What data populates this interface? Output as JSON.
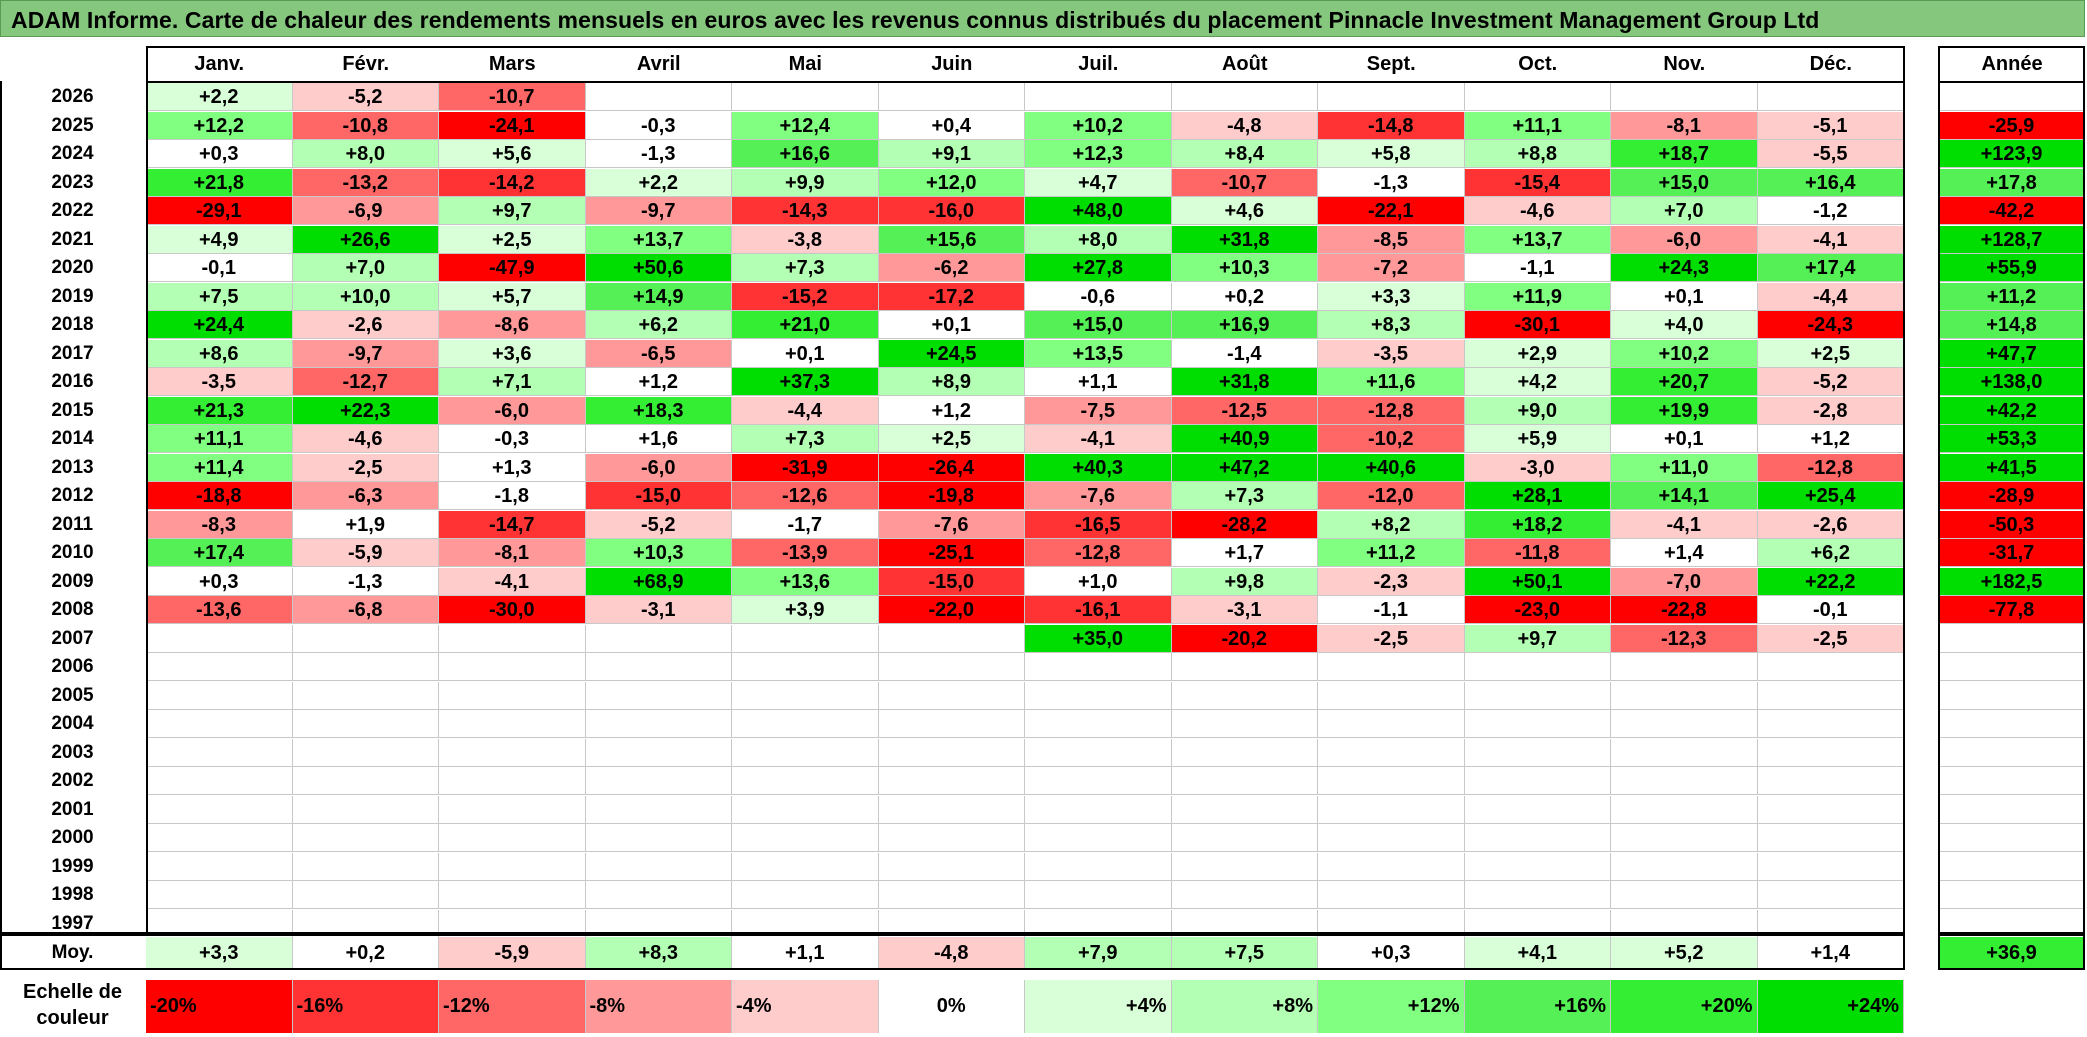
{
  "title": "ADAM Informe. Carte de chaleur des rendements mensuels en euros avec les revenus connus distribués du placement Pinnacle Investment Management Group Ltd",
  "chart_data": {
    "type": "heatmap",
    "title": "ADAM Informe. Carte de chaleur des rendements mensuels en euros avec les revenus connus distribués du placement Pinnacle Investment Management Group Ltd",
    "columns": [
      "Janv.",
      "Févr.",
      "Mars",
      "Avril",
      "Mai",
      "Juin",
      "Juil.",
      "Août",
      "Sept.",
      "Oct.",
      "Nov.",
      "Déc."
    ],
    "year_column_label": "Année",
    "rows": [
      {
        "year": "2026",
        "values": [
          "+2,2",
          "-5,2",
          "-10,7",
          "",
          "",
          "",
          "",
          "",
          "",
          "",
          "",
          ""
        ],
        "annual": ""
      },
      {
        "year": "2025",
        "values": [
          "+12,2",
          "-10,8",
          "-24,1",
          "-0,3",
          "+12,4",
          "+0,4",
          "+10,2",
          "-4,8",
          "-14,8",
          "+11,1",
          "-8,1",
          "-5,1"
        ],
        "annual": "-25,9"
      },
      {
        "year": "2024",
        "values": [
          "+0,3",
          "+8,0",
          "+5,6",
          "-1,3",
          "+16,6",
          "+9,1",
          "+12,3",
          "+8,4",
          "+5,8",
          "+8,8",
          "+18,7",
          "-5,5"
        ],
        "annual": "+123,9"
      },
      {
        "year": "2023",
        "values": [
          "+21,8",
          "-13,2",
          "-14,2",
          "+2,2",
          "+9,9",
          "+12,0",
          "+4,7",
          "-10,7",
          "-1,3",
          "-15,4",
          "+15,0",
          "+16,4"
        ],
        "annual": "+17,8"
      },
      {
        "year": "2022",
        "values": [
          "-29,1",
          "-6,9",
          "+9,7",
          "-9,7",
          "-14,3",
          "-16,0",
          "+48,0",
          "+4,6",
          "-22,1",
          "-4,6",
          "+7,0",
          "-1,2"
        ],
        "annual": "-42,2"
      },
      {
        "year": "2021",
        "values": [
          "+4,9",
          "+26,6",
          "+2,5",
          "+13,7",
          "-3,8",
          "+15,6",
          "+8,0",
          "+31,8",
          "-8,5",
          "+13,7",
          "-6,0",
          "-4,1"
        ],
        "annual": "+128,7"
      },
      {
        "year": "2020",
        "values": [
          "-0,1",
          "+7,0",
          "-47,9",
          "+50,6",
          "+7,3",
          "-6,2",
          "+27,8",
          "+10,3",
          "-7,2",
          "-1,1",
          "+24,3",
          "+17,4"
        ],
        "annual": "+55,9"
      },
      {
        "year": "2019",
        "values": [
          "+7,5",
          "+10,0",
          "+5,7",
          "+14,9",
          "-15,2",
          "-17,2",
          "-0,6",
          "+0,2",
          "+3,3",
          "+11,9",
          "+0,1",
          "-4,4"
        ],
        "annual": "+11,2"
      },
      {
        "year": "2018",
        "values": [
          "+24,4",
          "-2,6",
          "-8,6",
          "+6,2",
          "+21,0",
          "+0,1",
          "+15,0",
          "+16,9",
          "+8,3",
          "-30,1",
          "+4,0",
          "-24,3"
        ],
        "annual": "+14,8"
      },
      {
        "year": "2017",
        "values": [
          "+8,6",
          "-9,7",
          "+3,6",
          "-6,5",
          "+0,1",
          "+24,5",
          "+13,5",
          "-1,4",
          "-3,5",
          "+2,9",
          "+10,2",
          "+2,5"
        ],
        "annual": "+47,7"
      },
      {
        "year": "2016",
        "values": [
          "-3,5",
          "-12,7",
          "+7,1",
          "+1,2",
          "+37,3",
          "+8,9",
          "+1,1",
          "+31,8",
          "+11,6",
          "+4,2",
          "+20,7",
          "-5,2"
        ],
        "annual": "+138,0"
      },
      {
        "year": "2015",
        "values": [
          "+21,3",
          "+22,3",
          "-6,0",
          "+18,3",
          "-4,4",
          "+1,2",
          "-7,5",
          "-12,5",
          "-12,8",
          "+9,0",
          "+19,9",
          "-2,8"
        ],
        "annual": "+42,2"
      },
      {
        "year": "2014",
        "values": [
          "+11,1",
          "-4,6",
          "-0,3",
          "+1,6",
          "+7,3",
          "+2,5",
          "-4,1",
          "+40,9",
          "-10,2",
          "+5,9",
          "+0,1",
          "+1,2"
        ],
        "annual": "+53,3"
      },
      {
        "year": "2013",
        "values": [
          "+11,4",
          "-2,5",
          "+1,3",
          "-6,0",
          "-31,9",
          "-26,4",
          "+40,3",
          "+47,2",
          "+40,6",
          "-3,0",
          "+11,0",
          "-12,8"
        ],
        "annual": "+41,5"
      },
      {
        "year": "2012",
        "values": [
          "-18,8",
          "-6,3",
          "-1,8",
          "-15,0",
          "-12,6",
          "-19,8",
          "-7,6",
          "+7,3",
          "-12,0",
          "+28,1",
          "+14,1",
          "+25,4"
        ],
        "annual": "-28,9"
      },
      {
        "year": "2011",
        "values": [
          "-8,3",
          "+1,9",
          "-14,7",
          "-5,2",
          "-1,7",
          "-7,6",
          "-16,5",
          "-28,2",
          "+8,2",
          "+18,2",
          "-4,1",
          "-2,6"
        ],
        "annual": "-50,3"
      },
      {
        "year": "2010",
        "values": [
          "+17,4",
          "-5,9",
          "-8,1",
          "+10,3",
          "-13,9",
          "-25,1",
          "-12,8",
          "+1,7",
          "+11,2",
          "-11,8",
          "+1,4",
          "+6,2"
        ],
        "annual": "-31,7"
      },
      {
        "year": "2009",
        "values": [
          "+0,3",
          "-1,3",
          "-4,1",
          "+68,9",
          "+13,6",
          "-15,0",
          "+1,0",
          "+9,8",
          "-2,3",
          "+50,1",
          "-7,0",
          "+22,2"
        ],
        "annual": "+182,5"
      },
      {
        "year": "2008",
        "values": [
          "-13,6",
          "-6,8",
          "-30,0",
          "-3,1",
          "+3,9",
          "-22,0",
          "-16,1",
          "-3,1",
          "-1,1",
          "-23,0",
          "-22,8",
          "-0,1"
        ],
        "annual": "-77,8"
      },
      {
        "year": "2007",
        "values": [
          "",
          "",
          "",
          "",
          "",
          "",
          "+35,0",
          "-20,2",
          "-2,5",
          "+9,7",
          "-12,3",
          "-2,5"
        ],
        "annual": ""
      },
      {
        "year": "2006",
        "values": [
          "",
          "",
          "",
          "",
          "",
          "",
          "",
          "",
          "",
          "",
          "",
          ""
        ],
        "annual": ""
      },
      {
        "year": "2005",
        "values": [
          "",
          "",
          "",
          "",
          "",
          "",
          "",
          "",
          "",
          "",
          "",
          ""
        ],
        "annual": ""
      },
      {
        "year": "2004",
        "values": [
          "",
          "",
          "",
          "",
          "",
          "",
          "",
          "",
          "",
          "",
          "",
          ""
        ],
        "annual": ""
      },
      {
        "year": "2003",
        "values": [
          "",
          "",
          "",
          "",
          "",
          "",
          "",
          "",
          "",
          "",
          "",
          ""
        ],
        "annual": ""
      },
      {
        "year": "2002",
        "values": [
          "",
          "",
          "",
          "",
          "",
          "",
          "",
          "",
          "",
          "",
          "",
          ""
        ],
        "annual": ""
      },
      {
        "year": "2001",
        "values": [
          "",
          "",
          "",
          "",
          "",
          "",
          "",
          "",
          "",
          "",
          "",
          ""
        ],
        "annual": ""
      },
      {
        "year": "2000",
        "values": [
          "",
          "",
          "",
          "",
          "",
          "",
          "",
          "",
          "",
          "",
          "",
          ""
        ],
        "annual": ""
      },
      {
        "year": "1999",
        "values": [
          "",
          "",
          "",
          "",
          "",
          "",
          "",
          "",
          "",
          "",
          "",
          ""
        ],
        "annual": ""
      },
      {
        "year": "1998",
        "values": [
          "",
          "",
          "",
          "",
          "",
          "",
          "",
          "",
          "",
          "",
          "",
          ""
        ],
        "annual": ""
      },
      {
        "year": "1997",
        "values": [
          "",
          "",
          "",
          "",
          "",
          "",
          "",
          "",
          "",
          "",
          "",
          ""
        ],
        "annual": ""
      }
    ],
    "average": {
      "label": "Moy.",
      "values": [
        "+3,3",
        "+0,2",
        "-5,9",
        "+8,3",
        "+1,1",
        "-4,8",
        "+7,9",
        "+7,5",
        "+0,3",
        "+4,1",
        "+5,2",
        "+1,4"
      ],
      "annual": "+36,9"
    },
    "color_scale": {
      "label": "Echelle de couleur",
      "steps": [
        {
          "label": "-20%",
          "value": -20,
          "color": "#ff0000"
        },
        {
          "label": "-16%",
          "value": -16,
          "color": "#ff3333"
        },
        {
          "label": "-12%",
          "value": -12,
          "color": "#ff6666"
        },
        {
          "label": "-8%",
          "value": -8,
          "color": "#ff9999"
        },
        {
          "label": "-4%",
          "value": -4,
          "color": "#ffcccc"
        },
        {
          "label": "0%",
          "value": 0,
          "color": "#ffffff"
        },
        {
          "label": "+4%",
          "value": 4,
          "color": "#d9ffd9"
        },
        {
          "label": "+8%",
          "value": 8,
          "color": "#b3ffb3"
        },
        {
          "label": "+12%",
          "value": 12,
          "color": "#80ff80"
        },
        {
          "label": "+16%",
          "value": 16,
          "color": "#55f055"
        },
        {
          "label": "+20%",
          "value": 20,
          "color": "#33ee33"
        },
        {
          "label": "+24%",
          "value": 24,
          "color": "#00dd00"
        }
      ]
    }
  }
}
